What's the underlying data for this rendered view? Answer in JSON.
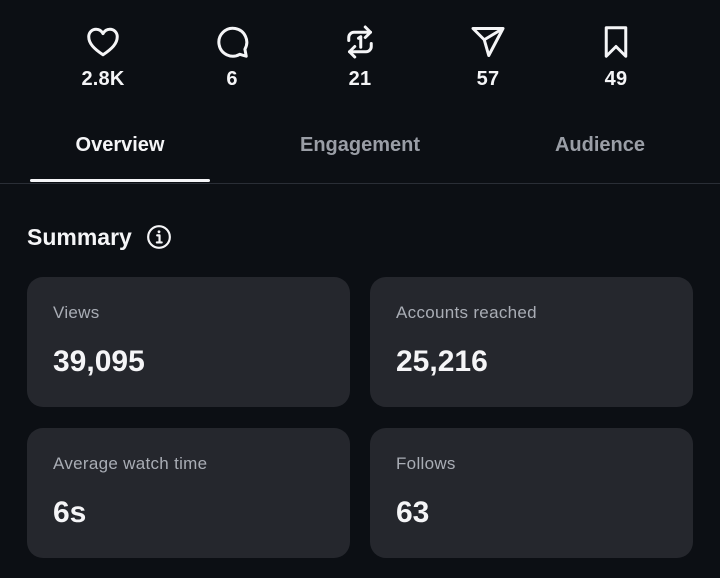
{
  "stats": [
    {
      "icon": "heart-icon",
      "count": "2.8K"
    },
    {
      "icon": "comment-icon",
      "count": "6"
    },
    {
      "icon": "repost-icon",
      "count": "21"
    },
    {
      "icon": "send-icon",
      "count": "57"
    },
    {
      "icon": "bookmark-icon",
      "count": "49"
    }
  ],
  "tabs": [
    {
      "label": "Overview",
      "active": true
    },
    {
      "label": "Engagement",
      "active": false
    },
    {
      "label": "Audience",
      "active": false
    }
  ],
  "summary": {
    "title": "Summary",
    "info_icon": "info-icon",
    "cards": [
      {
        "label": "Views",
        "value": "39,095"
      },
      {
        "label": "Accounts reached",
        "value": "25,216"
      },
      {
        "label": "Average watch time",
        "value": "6s"
      },
      {
        "label": "Follows",
        "value": "63"
      }
    ]
  },
  "colors": {
    "background": "#0c0f14",
    "card": "#25272d",
    "text_primary": "#f5f5f7",
    "text_secondary": "#9a9ea6"
  }
}
